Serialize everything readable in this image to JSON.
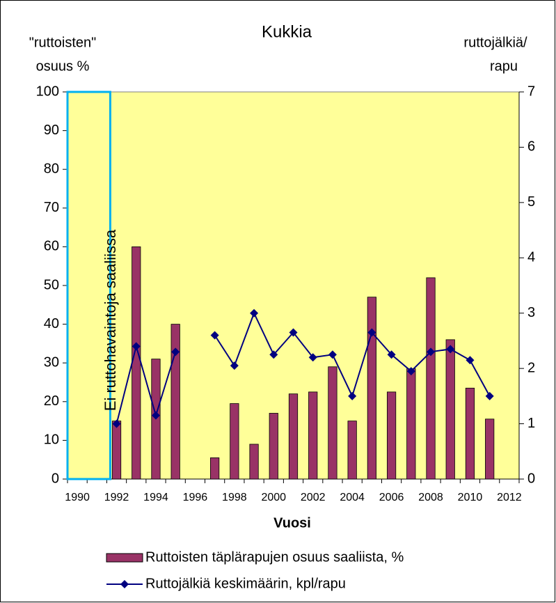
{
  "chart_data": {
    "type": "bar_line",
    "title": "Kukkia",
    "y_label": [
      "\"ruttoisten\"",
      "osuus %"
    ],
    "y2_label": [
      "ruttojälkiä/",
      "rapu"
    ],
    "x_label": "Vuosi",
    "annotation": "Ei ruttohavaintoja saaliissa",
    "categories": [
      "1990",
      null,
      "1992",
      null,
      "1994",
      null,
      "1996",
      null,
      "1998",
      null,
      "2000",
      null,
      "2002",
      null,
      "2004",
      null,
      "2006",
      null,
      "2008",
      null,
      "2010",
      null,
      "2012"
    ],
    "series": [
      {
        "name": "Ruttoisten täplärapujen osuus saaliista, %",
        "type": "bar",
        "color": "#993366",
        "values": [
          null,
          null,
          15,
          60,
          31,
          40,
          null,
          5.5,
          19.5,
          9,
          17,
          22,
          22.5,
          29,
          15,
          47,
          22.5,
          28.5,
          52,
          36,
          23.5,
          15.5,
          null
        ]
      },
      {
        "name": "Ruttojälkiä keskimäärin, kpl/rapu",
        "type": "line",
        "axis": "y2",
        "color": "#000080",
        "values": [
          null,
          null,
          1.0,
          2.4,
          1.15,
          2.3,
          null,
          2.6,
          2.05,
          3.0,
          2.25,
          2.65,
          2.2,
          2.25,
          1.5,
          2.65,
          2.25,
          1.95,
          2.3,
          2.35,
          2.15,
          1.5,
          null
        ]
      }
    ],
    "ylim": [
      0,
      100
    ],
    "yticks": [
      0,
      10,
      20,
      30,
      40,
      50,
      60,
      70,
      80,
      90,
      100
    ],
    "y2lim": [
      0,
      7
    ],
    "y2ticks": [
      0,
      1,
      2,
      3,
      4,
      5,
      6,
      7
    ],
    "plot_background": "#ffff99",
    "annotation_color": "#00b0f0"
  }
}
